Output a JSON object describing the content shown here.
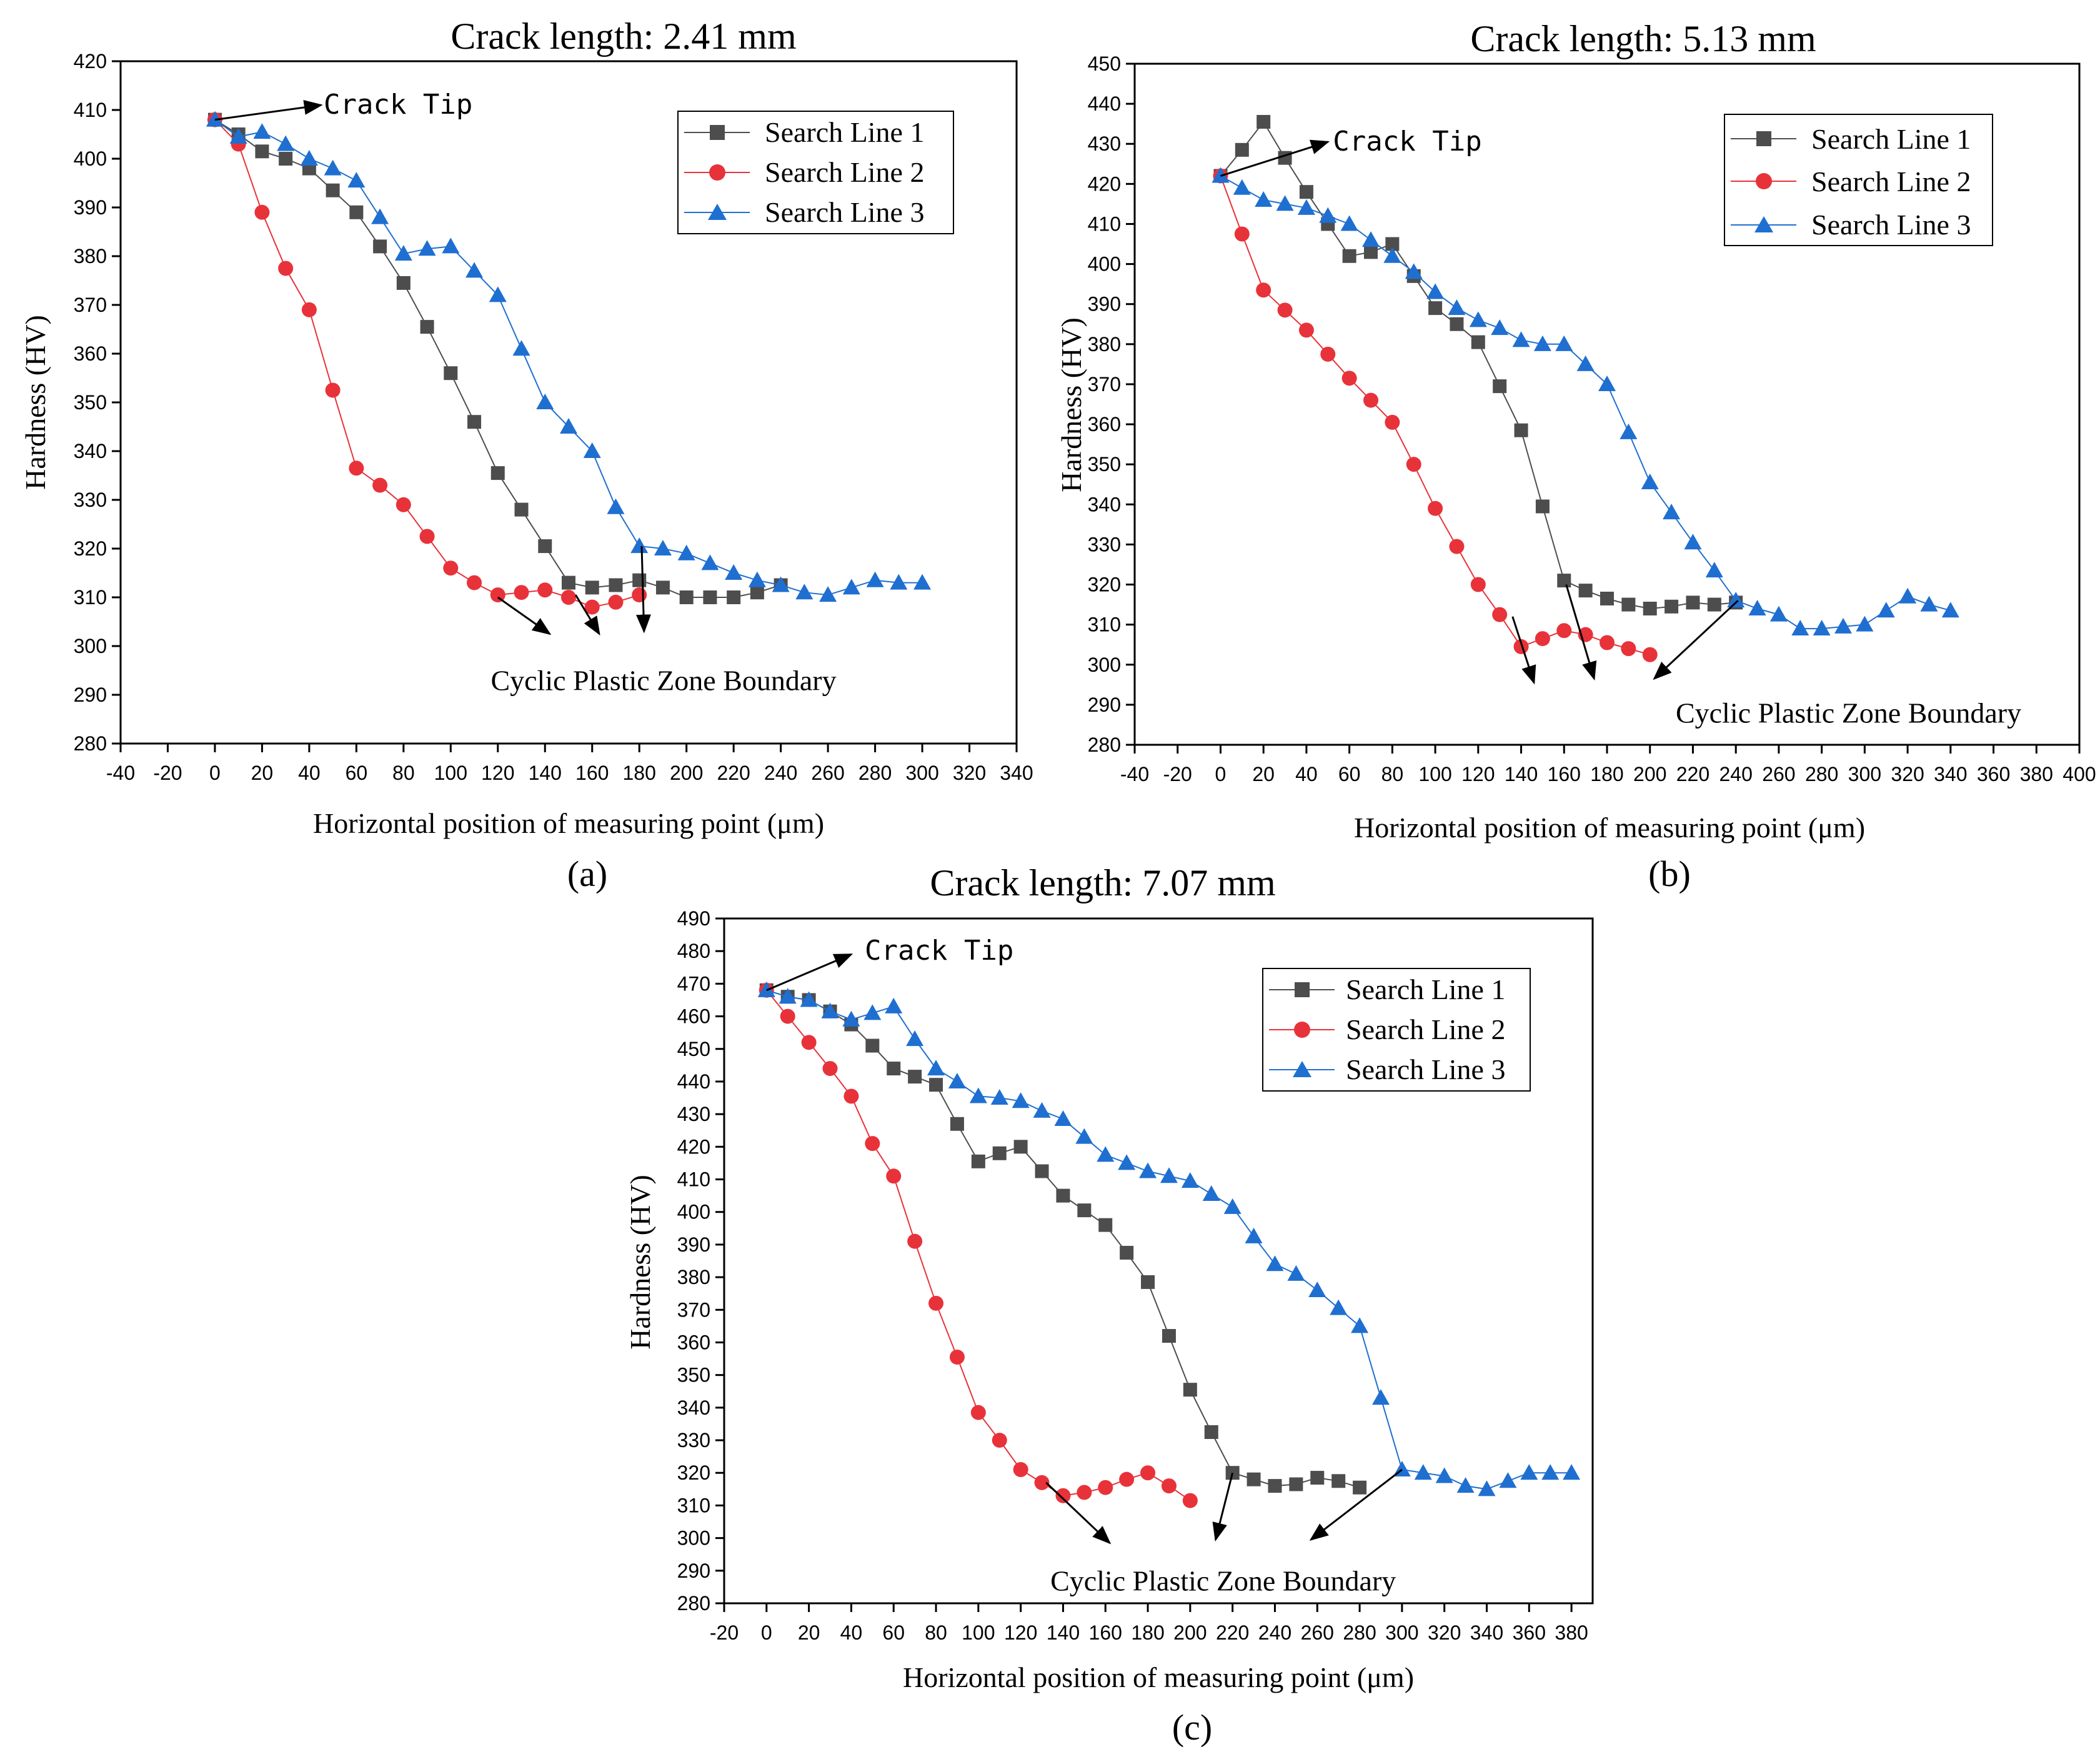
{
  "chart_data": [
    {
      "id": "a",
      "type": "line",
      "title": "Crack length: 2.41 mm",
      "panel_label": "(a)",
      "xlabel": "Horizontal position of measuring point (μm)",
      "ylabel": "Hardness (HV)",
      "xlim": [
        -40,
        340
      ],
      "ylim": [
        280,
        420
      ],
      "xticks": [
        -40,
        -20,
        0,
        20,
        40,
        60,
        80,
        100,
        120,
        140,
        160,
        180,
        200,
        220,
        240,
        260,
        280,
        300,
        320,
        340
      ],
      "yticks": [
        280,
        290,
        300,
        310,
        320,
        330,
        340,
        350,
        360,
        370,
        380,
        390,
        400,
        410,
        420
      ],
      "grid": false,
      "legend": "top-right",
      "series": [
        {
          "name": "Search Line 1",
          "color": "#4d4d4d",
          "marker": "square",
          "x": [
            0,
            10,
            20,
            30,
            40,
            50,
            60,
            70,
            80,
            90,
            100,
            110,
            120,
            130,
            140,
            150,
            160,
            170,
            180,
            190,
            200,
            210,
            220,
            230,
            240
          ],
          "y": [
            408,
            405,
            401.5,
            400,
            398,
            393.5,
            389,
            382,
            374.5,
            365.5,
            356,
            346,
            335.5,
            328,
            320.5,
            313,
            312,
            312.5,
            313.5,
            312,
            310,
            310,
            310,
            311,
            312.5
          ]
        },
        {
          "name": "Search Line 2",
          "color": "#e8323a",
          "marker": "circle",
          "x": [
            0,
            10,
            20,
            30,
            40,
            50,
            60,
            70,
            80,
            90,
            100,
            110,
            120,
            130,
            140,
            150,
            160,
            170,
            180
          ],
          "y": [
            408,
            403,
            389,
            377.5,
            369,
            352.5,
            336.5,
            333,
            329,
            322.5,
            316,
            313,
            310.5,
            311,
            311.5,
            310,
            308,
            309,
            310.5
          ]
        },
        {
          "name": "Search Line 3",
          "color": "#1f6fd1",
          "marker": "triangle",
          "x": [
            0,
            10,
            20,
            30,
            40,
            50,
            60,
            70,
            80,
            90,
            100,
            110,
            120,
            130,
            140,
            150,
            160,
            170,
            180,
            190,
            200,
            210,
            220,
            230,
            240,
            250,
            260,
            270,
            280,
            290,
            300
          ],
          "y": [
            408,
            404.5,
            405.5,
            403,
            400,
            398,
            395.5,
            388,
            380.5,
            381.5,
            382,
            377,
            372,
            361,
            350,
            345,
            340,
            328.5,
            320.5,
            320,
            319,
            317,
            315,
            313.5,
            312.5,
            311,
            310.5,
            312,
            313.5,
            313,
            313
          ]
        }
      ],
      "annotations": [
        {
          "text": "Crack Tip",
          "from": [
            0,
            408
          ],
          "to": [
            45,
            411
          ],
          "label_at": [
            44,
            411
          ]
        },
        {
          "text": "Cyclic Plastic Zone Boundary",
          "label_at": [
            117,
            293
          ],
          "arrows": [
            {
              "from": [
                120,
                310
              ],
              "to": [
                142,
                302.5
              ]
            },
            {
              "from": [
                153,
                310.5
              ],
              "to": [
                163,
                302.5
              ]
            },
            {
              "from": [
                181,
                320.5
              ],
              "to": [
                182,
                303
              ]
            }
          ]
        }
      ]
    },
    {
      "id": "b",
      "type": "line",
      "title": "Crack length: 5.13 mm",
      "panel_label": "(b)",
      "xlabel": "Horizontal position of measuring point (μm)",
      "ylabel": "Hardness (HV)",
      "xlim": [
        -40,
        400
      ],
      "ylim": [
        280,
        450
      ],
      "xticks": [
        -40,
        -20,
        0,
        20,
        40,
        60,
        80,
        100,
        120,
        140,
        160,
        180,
        200,
        220,
        240,
        260,
        280,
        300,
        320,
        340,
        360,
        380,
        400
      ],
      "yticks": [
        280,
        290,
        300,
        310,
        320,
        330,
        340,
        350,
        360,
        370,
        380,
        390,
        400,
        410,
        420,
        430,
        440,
        450
      ],
      "grid": false,
      "legend": "top-right",
      "series": [
        {
          "name": "Search Line 1",
          "color": "#4d4d4d",
          "marker": "square",
          "x": [
            0,
            10,
            20,
            30,
            40,
            50,
            60,
            70,
            80,
            90,
            100,
            110,
            120,
            130,
            140,
            150,
            160,
            170,
            180,
            190,
            200,
            210,
            220,
            230,
            240
          ],
          "y": [
            422,
            428.5,
            435.5,
            426.5,
            418,
            410,
            402,
            403,
            405,
            397,
            389,
            385,
            380.5,
            369.5,
            358.5,
            339.5,
            321,
            318.5,
            316.5,
            315,
            314,
            314.5,
            315.5,
            315,
            315.5
          ]
        },
        {
          "name": "Search Line 2",
          "color": "#e8323a",
          "marker": "circle",
          "x": [
            0,
            10,
            20,
            30,
            40,
            50,
            60,
            70,
            80,
            90,
            100,
            110,
            120,
            130,
            140,
            150,
            160,
            170,
            180,
            190,
            200
          ],
          "y": [
            422,
            407.5,
            393.5,
            388.5,
            383.5,
            377.5,
            371.5,
            366,
            360.5,
            350,
            339,
            329.5,
            320,
            312.5,
            304.5,
            306.5,
            308.5,
            307.5,
            305.5,
            304,
            302.5
          ]
        },
        {
          "name": "Search Line 3",
          "color": "#1f6fd1",
          "marker": "triangle",
          "x": [
            0,
            10,
            20,
            30,
            40,
            50,
            60,
            70,
            80,
            90,
            100,
            110,
            120,
            130,
            140,
            150,
            160,
            170,
            180,
            190,
            200,
            210,
            220,
            230,
            240,
            250,
            260,
            270,
            280,
            290,
            300,
            310,
            320,
            330,
            340
          ],
          "y": [
            422,
            419,
            416,
            415,
            414,
            412,
            410,
            406,
            402,
            398,
            393,
            389,
            386,
            384,
            381,
            380,
            380,
            375,
            370,
            358,
            345.5,
            338,
            330.5,
            323.5,
            316,
            314,
            312.5,
            309,
            309,
            309.5,
            310,
            313.5,
            317,
            315,
            313.5
          ]
        }
      ],
      "annotations": [
        {
          "text": "Crack Tip",
          "from": [
            0,
            422
          ],
          "to": [
            50,
            430.5
          ],
          "label_at": [
            50,
            430.5
          ]
        },
        {
          "text": "Cyclic Plastic Zone Boundary",
          "label_at": [
            212,
            288
          ],
          "arrows": [
            {
              "from": [
                136,
                312
              ],
              "to": [
                146,
                295.5
              ]
            },
            {
              "from": [
                161,
                320
              ],
              "to": [
                174,
                296.5
              ]
            },
            {
              "from": [
                241,
                316
              ],
              "to": [
                202,
                296.5
              ]
            }
          ]
        }
      ]
    },
    {
      "id": "c",
      "type": "line",
      "title": "Crack length: 7.07 mm",
      "panel_label": "(c)",
      "xlabel": "Horizontal position of measuring point (μm)",
      "ylabel": "Hardness (HV)",
      "xlim": [
        -20,
        390
      ],
      "ylim": [
        280,
        490
      ],
      "xticks": [
        -20,
        0,
        20,
        40,
        60,
        80,
        100,
        120,
        140,
        160,
        180,
        200,
        220,
        240,
        260,
        280,
        300,
        320,
        340,
        360,
        380
      ],
      "yticks": [
        280,
        290,
        300,
        310,
        320,
        330,
        340,
        350,
        360,
        370,
        380,
        390,
        400,
        410,
        420,
        430,
        440,
        450,
        460,
        470,
        480,
        490
      ],
      "grid": false,
      "legend": "top-right",
      "series": [
        {
          "name": "Search Line 1",
          "color": "#4d4d4d",
          "marker": "square",
          "x": [
            0,
            10,
            20,
            30,
            40,
            50,
            60,
            70,
            80,
            90,
            100,
            110,
            120,
            130,
            140,
            150,
            160,
            170,
            180,
            190,
            200,
            210,
            220,
            230,
            240,
            250,
            260,
            270,
            280
          ],
          "y": [
            468,
            466,
            465,
            461.5,
            457.5,
            451,
            444,
            441.5,
            439,
            427,
            415.5,
            418,
            420,
            412.5,
            405,
            400.5,
            396,
            387.5,
            378.5,
            362,
            345.5,
            332.5,
            320,
            318,
            316,
            316.5,
            318.5,
            317.5,
            315.5
          ]
        },
        {
          "name": "Search Line 2",
          "color": "#e8323a",
          "marker": "circle",
          "x": [
            0,
            10,
            20,
            30,
            40,
            50,
            60,
            70,
            80,
            90,
            100,
            110,
            120,
            130,
            140,
            150,
            160,
            170,
            180,
            190,
            200
          ],
          "y": [
            468,
            460,
            452,
            444,
            435.5,
            421,
            411,
            391,
            372,
            355.5,
            338.5,
            330,
            321,
            317,
            313,
            314,
            315.5,
            318,
            320,
            316,
            311.5
          ]
        },
        {
          "name": "Search Line 3",
          "color": "#1f6fd1",
          "marker": "triangle",
          "x": [
            0,
            10,
            20,
            30,
            40,
            50,
            60,
            70,
            80,
            90,
            100,
            110,
            120,
            130,
            140,
            150,
            160,
            170,
            180,
            190,
            200,
            210,
            220,
            230,
            240,
            250,
            260,
            270,
            280,
            290,
            300,
            310,
            320,
            330,
            340,
            350,
            360,
            370,
            380
          ],
          "y": [
            468,
            466,
            465,
            461.5,
            459,
            461,
            463,
            453,
            444,
            440,
            435.5,
            435,
            434,
            431,
            428.5,
            423,
            417.5,
            415,
            412.5,
            411,
            409.5,
            405.5,
            401.5,
            392.5,
            384,
            381,
            376,
            370.5,
            365,
            343,
            321,
            320,
            319,
            316,
            315,
            317.5,
            320,
            320,
            320
          ]
        }
      ],
      "annotations": [
        {
          "text": "Crack Tip",
          "from": [
            0,
            468
          ],
          "to": [
            40,
            479
          ],
          "label_at": [
            44,
            480
          ]
        },
        {
          "text": "Cyclic Plastic Zone Boundary",
          "label_at": [
            134,
            287
          ],
          "arrows": [
            {
              "from": [
                132,
                317
              ],
              "to": [
                162,
                298.5
              ]
            },
            {
              "from": [
                220,
                320
              ],
              "to": [
                212,
                299.5
              ]
            },
            {
              "from": [
                300,
                321
              ],
              "to": [
                257,
                299.5
              ]
            }
          ]
        }
      ]
    }
  ]
}
